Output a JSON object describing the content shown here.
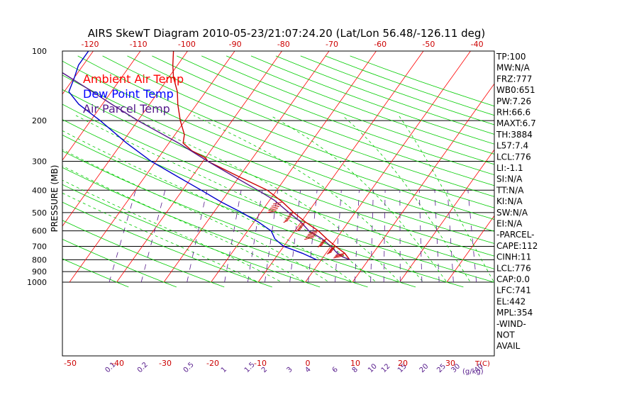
{
  "chart_data": {
    "type": "skewt",
    "title": "AIRS SkewT Diagram 2010-05-23/21:07:24.20 (Lat/Lon 56.48/-126.11 deg)",
    "ylabel": "PRESSURE (MB)",
    "xlabel": "T(C)",
    "mixing_ratio_label": "(g/kg)",
    "pressure_ticks": [
      100,
      200,
      300,
      400,
      500,
      600,
      700,
      800,
      900,
      1000
    ],
    "top_temperature_ticks": [
      -120,
      -110,
      -100,
      -90,
      -80,
      -70,
      -60,
      -50,
      -40
    ],
    "bottom_temperature_ticks": [
      -50,
      -40,
      -30,
      -20,
      -10,
      0,
      10,
      20,
      30
    ],
    "mixing_ratio_ticks": [
      "0.1",
      "0.2",
      "0.5",
      "1",
      "1.5",
      "2",
      "3",
      "4",
      "6",
      "8",
      "10",
      "12",
      "15",
      "20",
      "25",
      "30",
      "40"
    ],
    "legend": [
      {
        "label": "Ambient Air Temp",
        "color": "#ff0000"
      },
      {
        "label": "Dew Point Temp",
        "color": "#0000ff"
      },
      {
        "label": "Air Parcel Temp",
        "color": "#551a8b"
      }
    ],
    "series": [
      {
        "name": "Ambient Air Temp",
        "color": "#cc0000",
        "points": [
          {
            "p": 800,
            "t": 6
          },
          {
            "p": 750,
            "t": 4
          },
          {
            "p": 700,
            "t": 1
          },
          {
            "p": 650,
            "t": -2
          },
          {
            "p": 600,
            "t": -5
          },
          {
            "p": 550,
            "t": -9
          },
          {
            "p": 500,
            "t": -13
          },
          {
            "p": 450,
            "t": -17
          },
          {
            "p": 400,
            "t": -22
          },
          {
            "p": 350,
            "t": -30
          },
          {
            "p": 300,
            "t": -39
          },
          {
            "p": 290,
            "t": -40
          },
          {
            "p": 270,
            "t": -44
          },
          {
            "p": 250,
            "t": -47
          },
          {
            "p": 230,
            "t": -48
          },
          {
            "p": 200,
            "t": -51
          },
          {
            "p": 170,
            "t": -54
          },
          {
            "p": 150,
            "t": -56
          },
          {
            "p": 130,
            "t": -59
          },
          {
            "p": 115,
            "t": -61
          },
          {
            "p": 100,
            "t": -63
          }
        ]
      },
      {
        "name": "Dew Point Temp",
        "color": "#0000cc",
        "points": [
          {
            "p": 800,
            "t": -1
          },
          {
            "p": 750,
            "t": -5
          },
          {
            "p": 700,
            "t": -10
          },
          {
            "p": 650,
            "t": -13
          },
          {
            "p": 600,
            "t": -15
          },
          {
            "p": 550,
            "t": -19
          },
          {
            "p": 500,
            "t": -24
          },
          {
            "p": 450,
            "t": -30
          },
          {
            "p": 400,
            "t": -36
          },
          {
            "p": 350,
            "t": -43
          },
          {
            "p": 300,
            "t": -51
          },
          {
            "p": 250,
            "t": -59
          },
          {
            "p": 200,
            "t": -68
          },
          {
            "p": 170,
            "t": -75
          },
          {
            "p": 150,
            "t": -79
          },
          {
            "p": 130,
            "t": -80
          },
          {
            "p": 115,
            "t": -81
          },
          {
            "p": 100,
            "t": -81
          }
        ]
      },
      {
        "name": "Air Parcel Temp",
        "color": "#551a8b",
        "points": [
          {
            "p": 800,
            "t": 6
          },
          {
            "p": 776,
            "t": 4
          },
          {
            "p": 741,
            "t": 2
          },
          {
            "p": 700,
            "t": 0
          },
          {
            "p": 650,
            "t": -3
          },
          {
            "p": 600,
            "t": -7
          },
          {
            "p": 550,
            "t": -10
          },
          {
            "p": 500,
            "t": -14
          },
          {
            "p": 442,
            "t": -19
          },
          {
            "p": 400,
            "t": -24
          },
          {
            "p": 350,
            "t": -31
          },
          {
            "p": 300,
            "t": -39
          },
          {
            "p": 250,
            "t": -48
          },
          {
            "p": 200,
            "t": -60
          },
          {
            "p": 170,
            "t": -68
          },
          {
            "p": 150,
            "t": -74
          },
          {
            "p": 130,
            "t": -81
          },
          {
            "p": 115,
            "t": -87
          },
          {
            "p": 100,
            "t": -93
          }
        ]
      }
    ],
    "stats": [
      "TP:100",
      "MW:N/A",
      "FRZ:777",
      "WB0:651",
      "PW:7.26",
      "RH:66.6",
      "MAXT:6.7",
      "TH:3884",
      "L57:7.4",
      "LCL:776",
      "LI:-1.1",
      "SI:N/A",
      "TT:N/A",
      "KI:N/A",
      "SW:N/A",
      "EI:N/A",
      "-PARCEL-",
      "CAPE:112",
      "CINH:11",
      "LCL:776",
      "CAP:0.0",
      "LFC:741",
      "EL:442",
      "MPL:354",
      "-WIND-",
      "NOT",
      "AVAIL"
    ]
  }
}
